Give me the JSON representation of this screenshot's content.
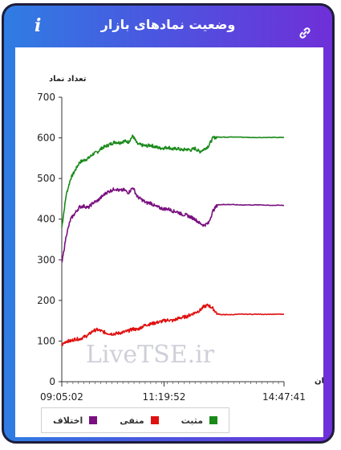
{
  "header": {
    "title": "وضعیت نمادهای بازار",
    "info_label": "i"
  },
  "colors": {
    "positive": "#1a8a1a",
    "negative": "#e01010",
    "difference": "#7a107f"
  },
  "chart_data": {
    "type": "line",
    "ylabel": "تعداد نماد",
    "xlabel": "زمان",
    "ylim": [
      0,
      700
    ],
    "yticks": [
      0,
      100,
      200,
      300,
      400,
      500,
      600,
      700
    ],
    "xticks": [
      "09:05:02",
      "11:19:52",
      "14:47:41"
    ],
    "xtick_positions": [
      0,
      0.46,
      1
    ],
    "x": [
      0,
      0.02,
      0.04,
      0.06,
      0.08,
      0.1,
      0.12,
      0.14,
      0.16,
      0.18,
      0.2,
      0.22,
      0.24,
      0.26,
      0.28,
      0.3,
      0.32,
      0.34,
      0.36,
      0.38,
      0.4,
      0.42,
      0.44,
      0.46,
      0.48,
      0.5,
      0.52,
      0.54,
      0.56,
      0.58,
      0.6,
      0.62,
      0.64,
      0.66,
      0.68,
      0.7,
      0.72,
      0.74,
      0.76,
      0.8,
      0.85,
      0.9,
      0.95,
      1.0
    ],
    "series": [
      {
        "name": "مثبت",
        "color": "#1a8a1a",
        "values": [
          380,
          460,
          500,
          520,
          540,
          545,
          550,
          560,
          565,
          575,
          580,
          585,
          590,
          588,
          592,
          590,
          605,
          585,
          582,
          580,
          582,
          578,
          575,
          575,
          577,
          572,
          574,
          570,
          572,
          570,
          574,
          566,
          572,
          580,
          600,
          602,
          602,
          602,
          602,
          602,
          601,
          601,
          601,
          601
        ]
      },
      {
        "name": "منفی",
        "color": "#e01010",
        "values": [
          90,
          100,
          100,
          105,
          105,
          110,
          115,
          125,
          128,
          124,
          120,
          118,
          118,
          120,
          122,
          125,
          130,
          128,
          135,
          140,
          142,
          145,
          147,
          150,
          152,
          150,
          155,
          158,
          160,
          165,
          170,
          175,
          185,
          188,
          180,
          167,
          165,
          165,
          165,
          166,
          166,
          166,
          166,
          166
        ]
      },
      {
        "name": "اختلاف",
        "color": "#7a107f",
        "values": [
          290,
          360,
          400,
          415,
          430,
          432,
          428,
          440,
          445,
          455,
          465,
          470,
          475,
          470,
          472,
          465,
          478,
          455,
          448,
          440,
          440,
          432,
          428,
          425,
          425,
          420,
          418,
          412,
          410,
          405,
          400,
          390,
          385,
          390,
          420,
          435,
          436,
          436,
          436,
          435,
          435,
          435,
          434,
          434
        ]
      }
    ],
    "legend_position": "bottom-left",
    "watermark": "LiveTSE.ir"
  }
}
